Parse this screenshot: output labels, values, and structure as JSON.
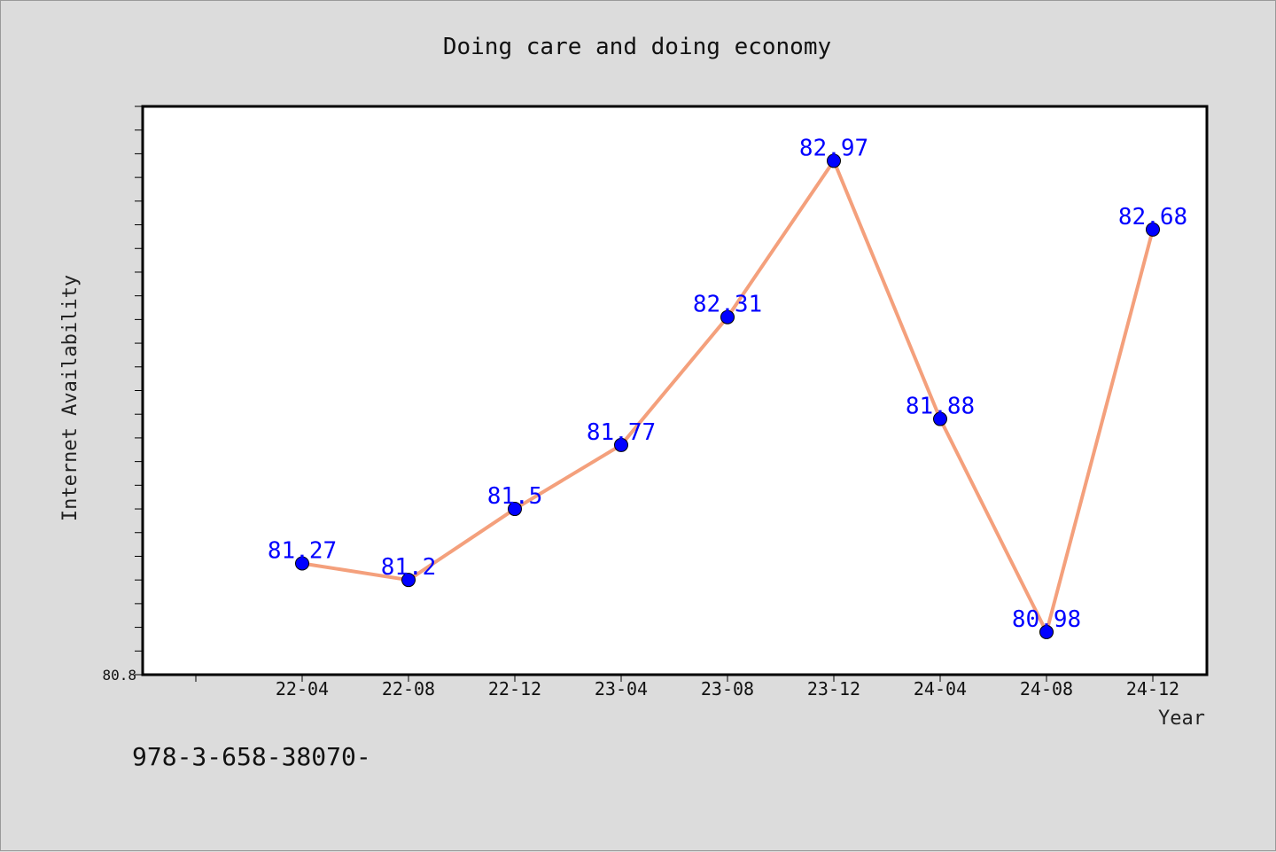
{
  "chart_data": {
    "type": "line",
    "title": "Doing care and doing economy",
    "xlabel": "Year",
    "ylabel": "Internet Availability",
    "categories": [
      "22-04",
      "22-08",
      "22-12",
      "23-04",
      "23-08",
      "23-12",
      "24-04",
      "24-08",
      "24-12"
    ],
    "series": [
      {
        "values": [
          81.27,
          81.2,
          81.5,
          81.77,
          82.31,
          82.97,
          81.88,
          80.98,
          82.68
        ],
        "data_labels": [
          "81.27",
          "81.2",
          "81.5",
          "81.77",
          "82.31",
          "82.97",
          "81.88",
          "80.98",
          "82.68"
        ]
      }
    ],
    "ylim": [
      80.8,
      83.2
    ],
    "y_tick_labels": [
      "80.8"
    ],
    "line_color": "#f4a07c",
    "marker_color": "#0000ff",
    "label_color": "#0000ff",
    "grid": false
  },
  "footer_text": "978-3-658-38070-"
}
